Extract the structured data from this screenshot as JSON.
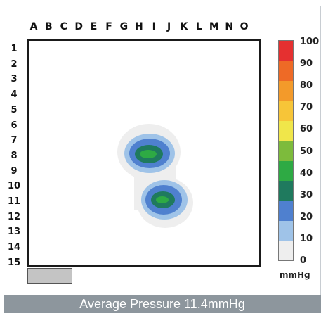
{
  "chart_data": {
    "type": "heatmap",
    "columns": [
      "A",
      "B",
      "C",
      "D",
      "E",
      "F",
      "G",
      "H",
      "I",
      "J",
      "K",
      "L",
      "M",
      "N",
      "O"
    ],
    "rows": [
      "1",
      "2",
      "3",
      "4",
      "5",
      "6",
      "7",
      "8",
      "9",
      "10",
      "11",
      "12",
      "13",
      "14",
      "15"
    ],
    "colorbar": {
      "ticks": [
        "0",
        "10",
        "20",
        "30",
        "40",
        "50",
        "60",
        "70",
        "80",
        "90",
        "100"
      ],
      "unit": "mmHg",
      "colors": [
        "#eeeeee",
        "#9fc3e8",
        "#4f80cf",
        "#1f7a5e",
        "#2eaa44",
        "#7dbb3c",
        "#f0e64a",
        "#f7c538",
        "#f39a2a",
        "#ee6a26",
        "#e53030"
      ]
    },
    "regions": [
      {
        "label": "upper contact area",
        "center_col": "H",
        "center_row": "8",
        "peak_band": "40-50 mmHg"
      },
      {
        "label": "lower contact area",
        "center_col": "I",
        "center_row": "11",
        "peak_band": "40-50 mmHg"
      }
    ],
    "caption": "Average Pressure 11.4mmHg"
  }
}
